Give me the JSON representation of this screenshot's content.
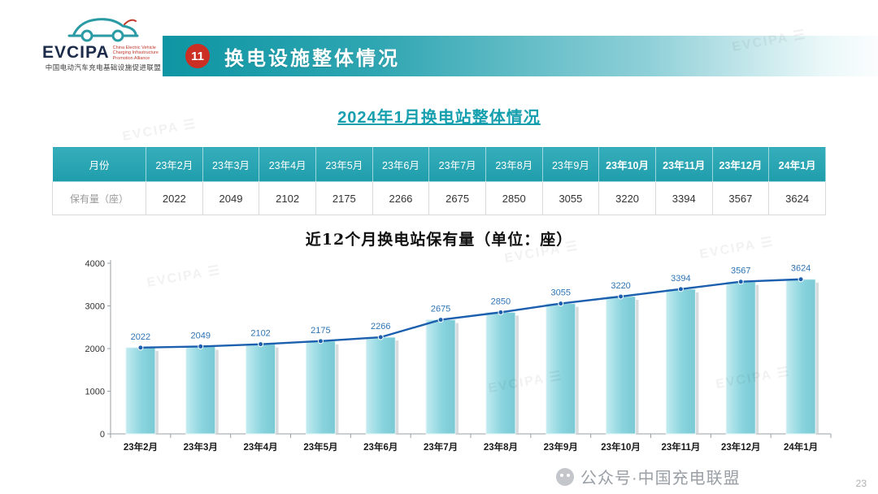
{
  "logo": {
    "brand": "EVCIPA",
    "side_text": "China Electric Vehicle Charging Infrastructure Promotion Alliance",
    "org_cn": "中国电动汽车充电基础设施促进联盟"
  },
  "header": {
    "badge": "11",
    "title": "换电设施整体情况"
  },
  "section": {
    "subtitle": "2024年1月换电站整体情况"
  },
  "table": {
    "header_label": "月份",
    "row_label": "保有量（座）",
    "columns": [
      "23年2月",
      "23年3月",
      "23年4月",
      "23年5月",
      "23年6月",
      "23年7月",
      "23年8月",
      "23年9月",
      "23年10月",
      "23年11月",
      "23年12月",
      "24年1月"
    ],
    "values": [
      2022,
      2049,
      2102,
      2175,
      2266,
      2675,
      2850,
      3055,
      3220,
      3394,
      3567,
      3624
    ]
  },
  "chart_data": {
    "type": "bar",
    "subtype": "bar-with-line-overlay",
    "title": "近12个月换电站保有量（单位：座）",
    "categories": [
      "23年2月",
      "23年3月",
      "23年4月",
      "23年5月",
      "23年6月",
      "23年7月",
      "23年8月",
      "23年9月",
      "23年10月",
      "23年11月",
      "23年12月",
      "24年1月"
    ],
    "values": [
      2022,
      2049,
      2102,
      2175,
      2266,
      2675,
      2850,
      3055,
      3220,
      3394,
      3567,
      3624
    ],
    "ylim": [
      0,
      4000
    ],
    "yticks": [
      0,
      1000,
      2000,
      3000,
      4000
    ],
    "grid": false,
    "legend": "none",
    "bar_color": "#8ad4de",
    "bar_highlight": "#c2ebf0",
    "bar_shadow": "#ced2d5",
    "line_color": "#1b5fae",
    "label_color": "#2e74b5"
  },
  "decor": {
    "watermark": "EVCIPA ☰"
  },
  "footer": {
    "watermark": "公众号·中国充电联盟",
    "page_number": "23"
  }
}
